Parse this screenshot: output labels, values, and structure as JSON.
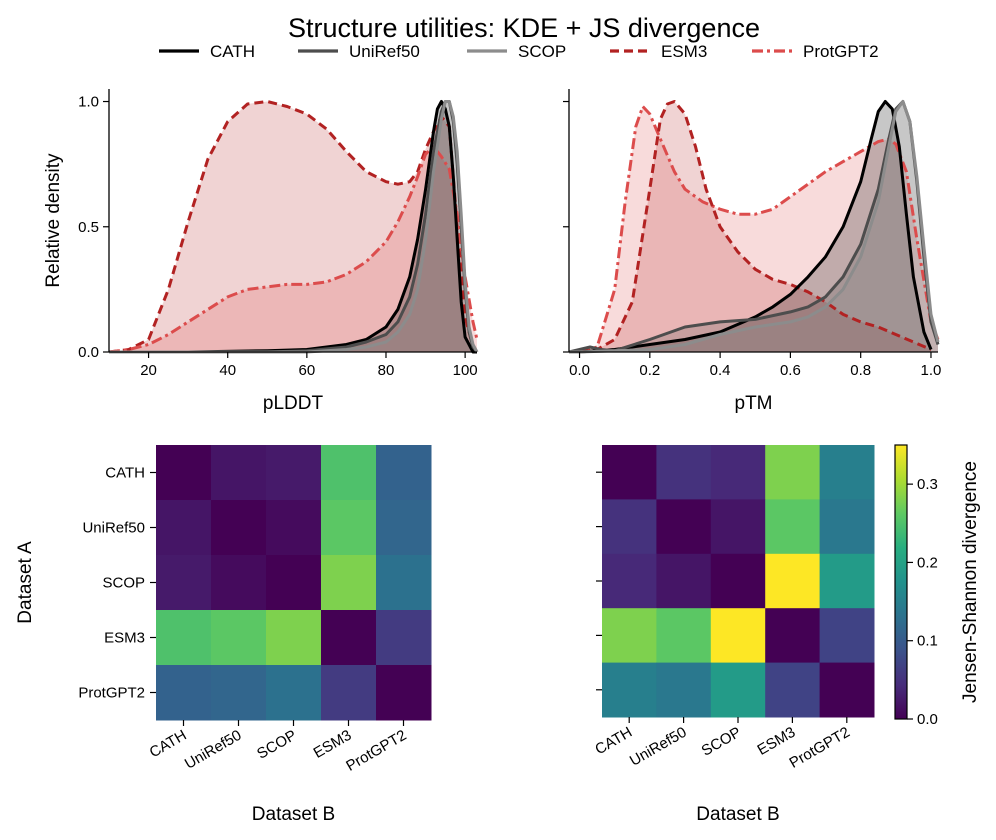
{
  "title": "Structure utilities: KDE + JS divergence",
  "legend": [
    {
      "name": "CATH",
      "color": "#000000",
      "dash": "solid"
    },
    {
      "name": "UniRef50",
      "color": "#4d4d4d",
      "dash": "solid"
    },
    {
      "name": "SCOP",
      "color": "#8c8c8c",
      "dash": "solid"
    },
    {
      "name": "ESM3",
      "color": "#b22222",
      "dash": "dashed"
    },
    {
      "name": "ProtGPT2",
      "color": "#dc4c4c",
      "dash": "dashdot"
    }
  ],
  "chart_data": [
    {
      "type": "line",
      "panel": "pLDDT",
      "xlabel": "pLDDT",
      "ylabel": "Relative density",
      "xlim": [
        10,
        103
      ],
      "ylim": [
        0,
        1.05
      ],
      "xticks": [
        "20",
        "40",
        "60",
        "80",
        "100"
      ],
      "yticks": [
        "0.0",
        "0.5",
        "1.0"
      ],
      "series": [
        {
          "name": "ESM3",
          "fill": true,
          "x": [
            10,
            15,
            20,
            25,
            30,
            35,
            40,
            45,
            50,
            55,
            60,
            65,
            70,
            75,
            80,
            83,
            86,
            88,
            90,
            92,
            94,
            96,
            98,
            100,
            102,
            103
          ],
          "y": [
            0.0,
            0.01,
            0.05,
            0.25,
            0.52,
            0.77,
            0.92,
            0.99,
            1.0,
            0.98,
            0.95,
            0.89,
            0.8,
            0.72,
            0.68,
            0.67,
            0.68,
            0.72,
            0.81,
            0.88,
            0.94,
            0.9,
            0.5,
            0.14,
            0.02,
            0.0
          ]
        },
        {
          "name": "ProtGPT2",
          "fill": true,
          "x": [
            10,
            15,
            20,
            25,
            30,
            35,
            40,
            45,
            50,
            55,
            60,
            65,
            70,
            75,
            80,
            83,
            86,
            88,
            90,
            92,
            94,
            96,
            98,
            100,
            102,
            103
          ],
          "y": [
            0.0,
            0.01,
            0.03,
            0.07,
            0.12,
            0.17,
            0.22,
            0.25,
            0.26,
            0.27,
            0.27,
            0.28,
            0.31,
            0.36,
            0.44,
            0.52,
            0.62,
            0.7,
            0.79,
            0.82,
            0.78,
            0.73,
            0.55,
            0.3,
            0.12,
            0.05
          ]
        },
        {
          "name": "CATH",
          "fill": true,
          "x": [
            10,
            30,
            50,
            60,
            70,
            75,
            80,
            83,
            86,
            88,
            90,
            92,
            93,
            94,
            95,
            96,
            97,
            98,
            99,
            100,
            102,
            103
          ],
          "y": [
            0.0,
            0.0,
            0.005,
            0.01,
            0.03,
            0.05,
            0.1,
            0.17,
            0.3,
            0.45,
            0.65,
            0.88,
            0.97,
            1.0,
            0.97,
            0.9,
            0.7,
            0.45,
            0.2,
            0.06,
            0.0,
            0.0
          ]
        },
        {
          "name": "UniRef50",
          "fill": true,
          "x": [
            10,
            30,
            50,
            60,
            70,
            75,
            80,
            83,
            86,
            88,
            90,
            92,
            94,
            95,
            96,
            97,
            98,
            99,
            100,
            101,
            102,
            103
          ],
          "y": [
            0.0,
            0.0,
            0.0,
            0.005,
            0.02,
            0.04,
            0.07,
            0.12,
            0.22,
            0.35,
            0.55,
            0.8,
            0.96,
            1.0,
            1.0,
            0.92,
            0.75,
            0.5,
            0.25,
            0.08,
            0.02,
            0.0
          ]
        },
        {
          "name": "SCOP",
          "fill": true,
          "x": [
            10,
            30,
            50,
            60,
            70,
            75,
            80,
            83,
            86,
            88,
            90,
            92,
            94,
            95,
            96,
            97,
            98,
            99,
            100,
            101,
            102,
            103
          ],
          "y": [
            0.0,
            0.0,
            0.0,
            0.0,
            0.01,
            0.02,
            0.04,
            0.08,
            0.15,
            0.25,
            0.45,
            0.72,
            0.93,
            1.0,
            1.0,
            0.94,
            0.8,
            0.55,
            0.28,
            0.1,
            0.03,
            0.0
          ]
        }
      ]
    },
    {
      "type": "line",
      "panel": "pTM",
      "xlabel": "pTM",
      "ylabel": "",
      "xlim": [
        -0.03,
        1.02
      ],
      "ylim": [
        0,
        1.05
      ],
      "xticks": [
        "0.0",
        "0.2",
        "0.4",
        "0.6",
        "0.8",
        "1.0"
      ],
      "yticks": [
        "0.0",
        "0.5",
        "1.0"
      ],
      "series": [
        {
          "name": "ProtGPT2",
          "fill": true,
          "x": [
            0.0,
            0.05,
            0.1,
            0.13,
            0.16,
            0.18,
            0.2,
            0.23,
            0.27,
            0.3,
            0.35,
            0.4,
            0.45,
            0.5,
            0.55,
            0.6,
            0.65,
            0.7,
            0.75,
            0.8,
            0.85,
            0.88,
            0.9,
            0.93,
            0.96,
            1.0,
            1.02
          ],
          "y": [
            0.0,
            0.02,
            0.25,
            0.6,
            0.9,
            0.98,
            0.95,
            0.85,
            0.72,
            0.65,
            0.6,
            0.57,
            0.55,
            0.55,
            0.57,
            0.62,
            0.67,
            0.72,
            0.76,
            0.8,
            0.84,
            0.85,
            0.83,
            0.72,
            0.45,
            0.12,
            0.05
          ]
        },
        {
          "name": "ESM3",
          "fill": true,
          "x": [
            0.0,
            0.05,
            0.1,
            0.15,
            0.2,
            0.23,
            0.25,
            0.27,
            0.3,
            0.33,
            0.36,
            0.4,
            0.45,
            0.5,
            0.55,
            0.6,
            0.65,
            0.7,
            0.75,
            0.8,
            0.85,
            0.9,
            0.95,
            1.0
          ],
          "y": [
            0.0,
            0.01,
            0.05,
            0.2,
            0.65,
            0.93,
            0.99,
            1.0,
            0.95,
            0.82,
            0.65,
            0.5,
            0.4,
            0.33,
            0.29,
            0.27,
            0.24,
            0.2,
            0.15,
            0.12,
            0.1,
            0.07,
            0.04,
            0.01
          ]
        },
        {
          "name": "CATH",
          "fill": true,
          "x": [
            -0.03,
            0.0,
            0.05,
            0.1,
            0.2,
            0.3,
            0.4,
            0.5,
            0.55,
            0.6,
            0.65,
            0.7,
            0.75,
            0.8,
            0.83,
            0.85,
            0.87,
            0.89,
            0.91,
            0.93,
            0.95,
            0.98,
            1.0
          ],
          "y": [
            0.0,
            0.0,
            0.005,
            0.01,
            0.03,
            0.05,
            0.08,
            0.14,
            0.18,
            0.23,
            0.3,
            0.38,
            0.5,
            0.68,
            0.85,
            0.96,
            1.0,
            0.97,
            0.82,
            0.55,
            0.3,
            0.08,
            0.01
          ]
        },
        {
          "name": "UniRef50",
          "fill": true,
          "x": [
            -0.03,
            0.0,
            0.03,
            0.06,
            0.1,
            0.2,
            0.3,
            0.4,
            0.5,
            0.6,
            0.65,
            0.7,
            0.75,
            0.8,
            0.85,
            0.88,
            0.9,
            0.92,
            0.94,
            0.96,
            0.98,
            1.0,
            1.02
          ],
          "y": [
            0.0,
            0.01,
            0.02,
            0.01,
            0.005,
            0.05,
            0.1,
            0.12,
            0.13,
            0.16,
            0.18,
            0.22,
            0.3,
            0.43,
            0.65,
            0.85,
            0.97,
            1.0,
            0.92,
            0.68,
            0.38,
            0.12,
            0.03
          ]
        },
        {
          "name": "SCOP",
          "fill": true,
          "x": [
            -0.03,
            0.0,
            0.1,
            0.2,
            0.3,
            0.4,
            0.5,
            0.6,
            0.65,
            0.7,
            0.75,
            0.8,
            0.85,
            0.88,
            0.9,
            0.92,
            0.94,
            0.96,
            0.98,
            1.0,
            1.02
          ],
          "y": [
            0.0,
            0.0,
            0.005,
            0.01,
            0.03,
            0.07,
            0.1,
            0.12,
            0.14,
            0.18,
            0.25,
            0.38,
            0.6,
            0.82,
            0.96,
            1.0,
            0.92,
            0.7,
            0.42,
            0.15,
            0.04
          ]
        }
      ]
    },
    {
      "type": "heatmap",
      "panel": "JS divergence (pLDDT)",
      "xlabel": "Dataset B",
      "ylabel": "Dataset A",
      "rows": [
        "CATH",
        "UniRef50",
        "SCOP",
        "ESM3",
        "ProtGPT2"
      ],
      "cols": [
        "CATH",
        "UniRef50",
        "SCOP",
        "ESM3",
        "ProtGPT2"
      ],
      "values": [
        [
          0.0,
          0.02,
          0.025,
          0.25,
          0.11
        ],
        [
          0.02,
          0.0,
          0.01,
          0.26,
          0.115
        ],
        [
          0.025,
          0.01,
          0.0,
          0.28,
          0.13
        ],
        [
          0.25,
          0.26,
          0.28,
          0.0,
          0.06
        ],
        [
          0.11,
          0.115,
          0.13,
          0.06,
          0.0
        ]
      ]
    },
    {
      "type": "heatmap",
      "panel": "JS divergence (pTM)",
      "xlabel": "Dataset B",
      "ylabel": "",
      "rows": [
        "CATH",
        "UniRef50",
        "SCOP",
        "ESM3",
        "ProtGPT2"
      ],
      "cols": [
        "CATH",
        "UniRef50",
        "SCOP",
        "ESM3",
        "ProtGPT2"
      ],
      "values": [
        [
          0.0,
          0.05,
          0.04,
          0.28,
          0.15
        ],
        [
          0.05,
          0.0,
          0.02,
          0.26,
          0.14
        ],
        [
          0.04,
          0.02,
          0.0,
          0.35,
          0.19
        ],
        [
          0.28,
          0.26,
          0.35,
          0.0,
          0.07
        ],
        [
          0.15,
          0.14,
          0.19,
          0.07,
          0.0
        ]
      ],
      "colorbar": {
        "label": "Jensen-Shannon divergence",
        "range": [
          0.0,
          0.35
        ],
        "ticks": [
          "0.0",
          "0.1",
          "0.2",
          "0.3"
        ]
      }
    }
  ]
}
